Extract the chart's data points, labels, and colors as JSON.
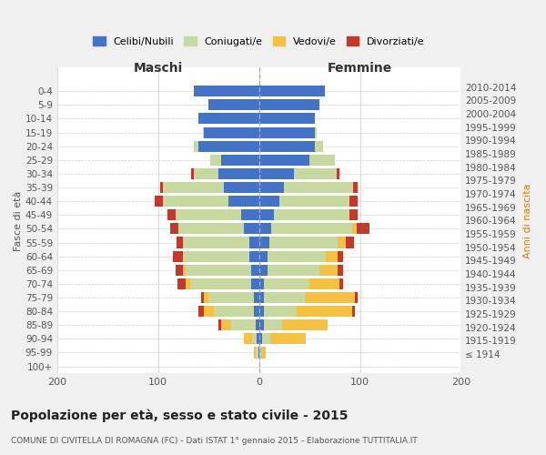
{
  "age_groups": [
    "100+",
    "95-99",
    "90-94",
    "85-89",
    "80-84",
    "75-79",
    "70-74",
    "65-69",
    "60-64",
    "55-59",
    "50-54",
    "45-49",
    "40-44",
    "35-39",
    "30-34",
    "25-29",
    "20-24",
    "15-19",
    "10-14",
    "5-9",
    "0-4"
  ],
  "birth_years": [
    "≤ 1914",
    "1915-1919",
    "1920-1924",
    "1925-1929",
    "1930-1934",
    "1935-1939",
    "1940-1944",
    "1945-1949",
    "1950-1954",
    "1955-1959",
    "1960-1964",
    "1965-1969",
    "1970-1974",
    "1975-1979",
    "1980-1984",
    "1985-1989",
    "1990-1994",
    "1995-1999",
    "2000-2004",
    "2005-2009",
    "2010-2014"
  ],
  "maschi": {
    "celibi": [
      0,
      1,
      2,
      3,
      5,
      5,
      8,
      8,
      10,
      10,
      15,
      18,
      30,
      35,
      40,
      38,
      60,
      55,
      60,
      50,
      65
    ],
    "coniugati": [
      0,
      2,
      5,
      25,
      40,
      45,
      60,
      65,
      65,
      65,
      65,
      65,
      65,
      60,
      25,
      10,
      5,
      1,
      0,
      0,
      0
    ],
    "vedovi": [
      0,
      2,
      8,
      10,
      10,
      5,
      5,
      2,
      0,
      0,
      0,
      0,
      0,
      0,
      0,
      0,
      0,
      0,
      0,
      0,
      0
    ],
    "divorziati": [
      0,
      0,
      0,
      2,
      5,
      2,
      8,
      8,
      10,
      7,
      8,
      8,
      8,
      3,
      2,
      0,
      0,
      0,
      0,
      0,
      0
    ]
  },
  "femmine": {
    "nubili": [
      0,
      0,
      3,
      5,
      5,
      5,
      5,
      8,
      8,
      10,
      12,
      15,
      20,
      25,
      35,
      50,
      55,
      55,
      55,
      60,
      65
    ],
    "coniugate": [
      0,
      2,
      8,
      18,
      32,
      40,
      45,
      52,
      58,
      68,
      80,
      75,
      70,
      68,
      42,
      25,
      8,
      2,
      0,
      0,
      0
    ],
    "vedove": [
      0,
      5,
      35,
      45,
      55,
      50,
      30,
      18,
      12,
      8,
      5,
      0,
      0,
      0,
      0,
      0,
      0,
      0,
      0,
      0,
      0
    ],
    "divorziate": [
      0,
      0,
      0,
      0,
      3,
      3,
      3,
      5,
      5,
      8,
      12,
      8,
      8,
      5,
      3,
      0,
      0,
      0,
      0,
      0,
      0
    ]
  },
  "color_celibi": "#4472c4",
  "color_coniugati": "#c5d9a0",
  "color_vedovi": "#f5c142",
  "color_divorziati": "#c0392b",
  "bg_color": "#f0f0f0",
  "plot_bg_color": "#ffffff",
  "title_main": "Popolazione per età, sesso e stato civile - 2015",
  "title_sub": "COMUNE DI CIVITELLA DI ROMAGNA (FC) - Dati ISTAT 1° gennaio 2015 - Elaborazione TUTTITALIA.IT",
  "xlabel_maschi": "Maschi",
  "xlabel_femmine": "Femmine",
  "ylabel_left": "Fasce di età",
  "ylabel_right": "Anni di nascita",
  "xlim": 200,
  "legend_labels": [
    "Celibi/Nubili",
    "Coniugati/e",
    "Vedovi/e",
    "Divorziati/e"
  ]
}
